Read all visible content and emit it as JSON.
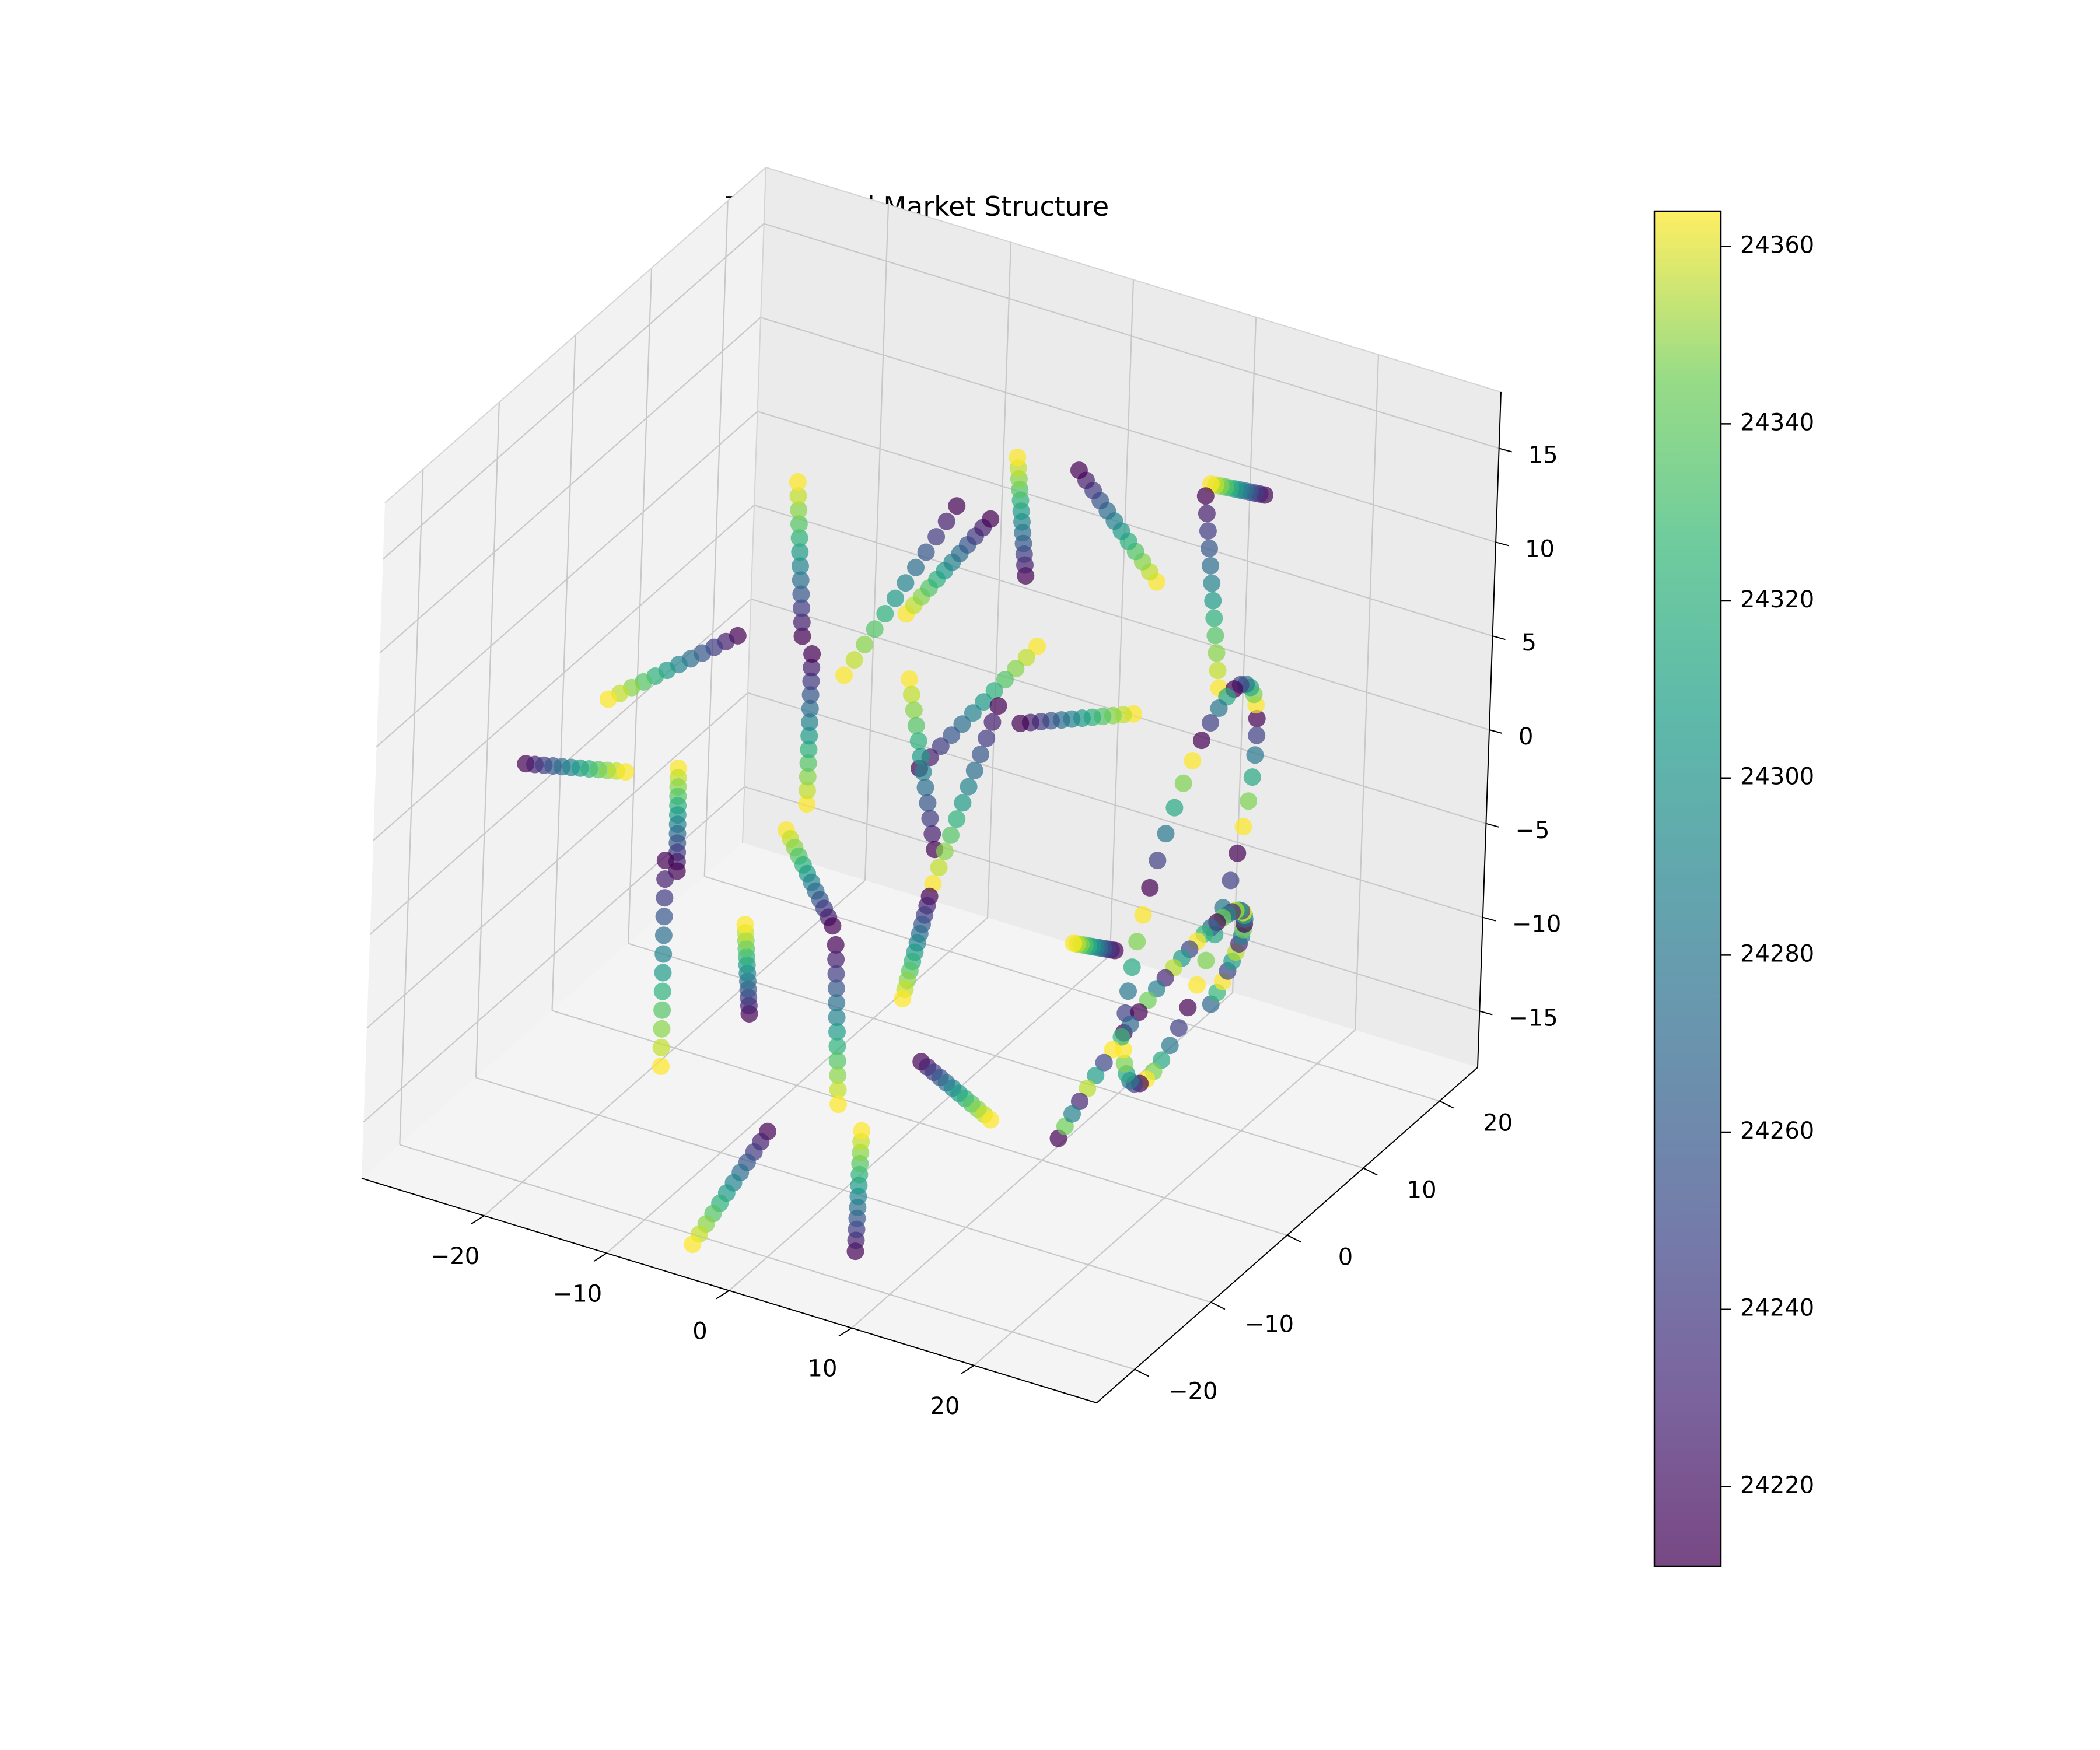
{
  "chart_data": {
    "type": "scatter",
    "projection": "3d",
    "title": "Topological Market Structure",
    "xlabel": "",
    "ylabel": "",
    "zlabel": "",
    "xlim": [
      -30,
      30
    ],
    "ylim": [
      -25,
      25
    ],
    "zlim": [
      -18,
      18
    ],
    "x_ticks": [
      -20,
      -10,
      0,
      10,
      20
    ],
    "y_ticks": [
      -20,
      -10,
      0,
      10,
      20
    ],
    "z_ticks": [
      -15,
      -10,
      -5,
      0,
      5,
      10,
      15
    ],
    "x_tick_labels": [
      "−20",
      "−10",
      "0",
      "10",
      "20"
    ],
    "y_tick_labels": [
      "−20",
      "−10",
      "0",
      "10",
      "20"
    ],
    "z_tick_labels": [
      "−15",
      "−10",
      "−5",
      "0",
      "5",
      "10",
      "15"
    ],
    "grid": true,
    "colormap": "viridis",
    "color_alpha": 0.7,
    "colorbar": {
      "min": 24211,
      "max": 24364,
      "ticks": [
        24220,
        24240,
        24260,
        24280,
        24300,
        24320,
        24340,
        24360
      ],
      "tick_labels": [
        "24220",
        "24240",
        "24260",
        "24280",
        "24300",
        "24320",
        "24340",
        "24360"
      ]
    },
    "structure": {
      "spokes": [
        {
          "center": [
            -2,
            2,
            0
          ],
          "dir": [
            -0.55,
            0.5,
            0.62
          ],
          "len": 5
        },
        {
          "center": [
            -9,
            10,
            5
          ],
          "dir": [
            0.6,
            0.2,
            0.8
          ],
          "len": 6
        },
        {
          "center": [
            -3,
            16,
            8
          ],
          "dir": [
            0.2,
            -0.5,
            0.85
          ],
          "len": 5
        },
        {
          "center": [
            6,
            14,
            10
          ],
          "dir": [
            -0.3,
            -0.6,
            0.75
          ],
          "len": 5
        },
        {
          "center": [
            12,
            20,
            11
          ],
          "dir": [
            0.1,
            -0.9,
            0.4
          ],
          "len": 5
        },
        {
          "center": [
            15,
            12,
            9
          ],
          "dir": [
            -0.4,
            0.4,
            0.8
          ],
          "len": 5
        },
        {
          "center": [
            -16,
            8,
            6
          ],
          "dir": [
            0.1,
            -0.3,
            0.95
          ],
          "len": 5
        },
        {
          "center": [
            -20,
            -2,
            3
          ],
          "dir": [
            0.85,
            0.3,
            0.4
          ],
          "len": 5
        },
        {
          "center": [
            -24,
            -8,
            -1
          ],
          "dir": [
            0.95,
            0.1,
            0.1
          ],
          "len": 4
        },
        {
          "center": [
            -10,
            0,
            1
          ],
          "dir": [
            0.0,
            0.0,
            1.0
          ],
          "len": 4
        },
        {
          "center": [
            0,
            6,
            2
          ],
          "dir": [
            0.5,
            0.7,
            0.5
          ],
          "len": 5
        },
        {
          "center": [
            4,
            -2,
            1
          ],
          "dir": [
            0.3,
            0.3,
            0.9
          ],
          "len": 5
        },
        {
          "center": [
            -6,
            -14,
            -6
          ],
          "dir": [
            0.3,
            -0.6,
            0.75
          ],
          "len": 5
        },
        {
          "center": [
            -14,
            -12,
            -8
          ],
          "dir": [
            -0.2,
            0.3,
            0.95
          ],
          "len": 5
        },
        {
          "center": [
            2,
            -15,
            -7
          ],
          "dir": [
            0.2,
            -0.2,
            -0.95
          ],
          "len": 4
        },
        {
          "center": [
            10,
            -12,
            -10
          ],
          "dir": [
            -0.9,
            0.3,
            0.1
          ],
          "len": 4
        },
        {
          "center": [
            6,
            -18,
            -14
          ],
          "dir": [
            0.2,
            -0.3,
            0.95
          ],
          "len": 4
        },
        {
          "center": [
            -2,
            -22,
            -14
          ],
          "dir": [
            0.6,
            0.2,
            0.8
          ],
          "len": 4
        },
        {
          "center": [
            16,
            -4,
            -4
          ],
          "dir": [
            0.2,
            -0.9,
            0.4
          ],
          "len": 5
        },
        {
          "center": [
            -4,
            8,
            8
          ],
          "dir": [
            0.7,
            0.2,
            0.7
          ],
          "len": 4
        },
        {
          "center": [
            8,
            6,
            3
          ],
          "dir": [
            0.9,
            0.4,
            0.1
          ],
          "len": 4
        },
        {
          "center": [
            -18,
            -4,
            -4
          ],
          "dir": [
            0.5,
            -0.8,
            -0.3
          ],
          "len": 4
        },
        {
          "center": [
            -6,
            -6,
            -4
          ],
          "dir": [
            -0.8,
            0.5,
            0.3
          ],
          "len": 4
        },
        {
          "center": [
            4,
            -8,
            -5
          ],
          "dir": [
            -0.3,
            0.9,
            0.3
          ],
          "len": 4
        }
      ],
      "ring": {
        "center": [
          20,
          2,
          -2
        ],
        "radius": 11,
        "turns": 1.0
      },
      "arc": {
        "center": [
          22,
          -8,
          -8
        ],
        "radius": 10,
        "span": 180
      }
    }
  }
}
